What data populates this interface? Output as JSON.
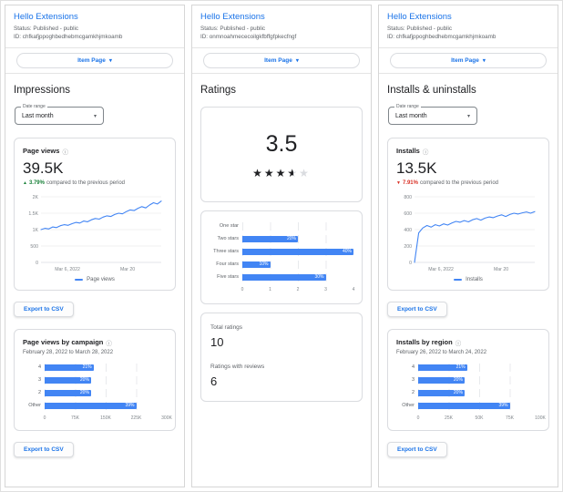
{
  "icons": {
    "info": "ⓘ",
    "chevron_down": "▾",
    "arrow_up": "▲",
    "arrow_down": "▼",
    "star": "★"
  },
  "colors": {
    "accent_blue": "#1a73e8",
    "chart_blue": "#4285f4",
    "positive_green": "#188038",
    "negative_red": "#d93025"
  },
  "panels": [
    {
      "header": {
        "title": "Hello Extensions",
        "status": "Status: Published - public",
        "id": "ID: chfkafjppoghbedhebmcgamkhjmkoamb"
      },
      "page_selector": "Item Page",
      "section_title": "Impressions",
      "date_range": {
        "label": "Date range",
        "value": "Last month"
      },
      "metric_card": {
        "title": "Page views",
        "value": "39.5K",
        "delta_percent": "3.79%",
        "delta_direction": "up",
        "delta_text": "compared to the previous period",
        "legend": "Page views"
      },
      "export_button": "Export to CSV",
      "breakdown_card": {
        "title": "Page views by campaign",
        "subtitle": "February 28, 2022 to March 28, 2022"
      }
    },
    {
      "header": {
        "title": "Hello Extensions",
        "status": "Status: Published - public",
        "id": "ID: onmnoahmececoilgkfbffgfpkecfngf"
      },
      "page_selector": "Item Page",
      "section_title": "Ratings",
      "rating": {
        "display": "3.5",
        "value": 3.5,
        "max": 5
      },
      "totals": {
        "total_label": "Total ratings",
        "total_value": "10",
        "reviews_label": "Ratings with reviews",
        "reviews_value": "6"
      }
    },
    {
      "header": {
        "title": "Hello Extensions",
        "status": "Status: Published - public",
        "id": "ID: chfkafjppoghbedhebmcgamkhjmkoamb"
      },
      "page_selector": "Item Page",
      "section_title": "Installs & uninstalls",
      "date_range": {
        "label": "Date range",
        "value": "Last month"
      },
      "metric_card": {
        "title": "Installs",
        "value": "13.5K",
        "delta_percent": "7.91%",
        "delta_direction": "down",
        "delta_text": "compared to the previous period",
        "legend": "Installs"
      },
      "export_button": "Export to CSV",
      "breakdown_card": {
        "title": "Installs by region",
        "subtitle": "February 26, 2022 to March 24, 2022"
      }
    }
  ],
  "chart_data": [
    {
      "type": "line",
      "title": "Page views",
      "series": [
        {
          "name": "Page views",
          "values": [
            1000,
            1040,
            1020,
            1080,
            1060,
            1120,
            1150,
            1130,
            1180,
            1220,
            1200,
            1260,
            1240,
            1300,
            1340,
            1320,
            1380,
            1420,
            1400,
            1460,
            1500,
            1480,
            1550,
            1600,
            1580,
            1650,
            1700,
            1660,
            1750,
            1820,
            1780,
            1870
          ]
        }
      ],
      "ylim": [
        0,
        2000
      ],
      "yticks": [
        {
          "v": 0,
          "label": "0"
        },
        {
          "v": 500,
          "label": "500"
        },
        {
          "v": 1000,
          "label": "1K"
        },
        {
          "v": 1500,
          "label": "1.5K"
        },
        {
          "v": 2000,
          "label": "2K"
        }
      ],
      "xticks": [
        {
          "pos": 0.22,
          "label": "Mar 6, 2022"
        },
        {
          "pos": 0.72,
          "label": "Mar 20"
        }
      ],
      "line_color": "#4285f4",
      "legend": "Page views",
      "grid": true
    },
    {
      "type": "hbar",
      "title": "Page views by campaign",
      "categories": [
        "4",
        "3",
        "2",
        "Other"
      ],
      "value_labels": [
        "21%",
        "20%",
        "20%",
        "39%"
      ],
      "values_pct": [
        21,
        20,
        20,
        39
      ],
      "widths_pct": [
        40,
        38,
        38,
        75
      ],
      "xticks": [
        "0",
        "75K",
        "150K",
        "225K",
        "300K"
      ],
      "bar_color": "#4285f4",
      "label_width": 24
    },
    {
      "type": "hbar",
      "title": "Ratings by stars",
      "categories": [
        "One star",
        "Two stars",
        "Three stars",
        "Four stars",
        "Five stars"
      ],
      "value_labels": [
        "",
        "20%",
        "40%",
        "10%",
        "30%"
      ],
      "values": [
        0,
        2,
        4,
        1,
        3
      ],
      "widths_pct": [
        0,
        50,
        100,
        25,
        75
      ],
      "xticks": [
        "0",
        "1",
        "2",
        "3",
        "4"
      ],
      "bar_color": "#4285f4",
      "label_width": 36
    },
    {
      "type": "line",
      "title": "Installs",
      "series": [
        {
          "name": "Installs",
          "values": [
            0,
            360,
            420,
            450,
            430,
            460,
            445,
            470,
            455,
            480,
            500,
            490,
            510,
            495,
            520,
            535,
            515,
            540,
            555,
            545,
            565,
            580,
            560,
            585,
            600,
            590,
            605,
            615,
            600,
            620
          ]
        }
      ],
      "ylim": [
        0,
        800
      ],
      "yticks": [
        {
          "v": 0,
          "label": "0"
        },
        {
          "v": 200,
          "label": "200"
        },
        {
          "v": 400,
          "label": "400"
        },
        {
          "v": 600,
          "label": "600"
        },
        {
          "v": 800,
          "label": "800"
        }
      ],
      "xticks": [
        {
          "pos": 0.22,
          "label": "Mar 6, 2022"
        },
        {
          "pos": 0.72,
          "label": "Mar 20"
        }
      ],
      "line_color": "#4285f4",
      "legend": "Installs",
      "grid": true
    }
  ]
}
